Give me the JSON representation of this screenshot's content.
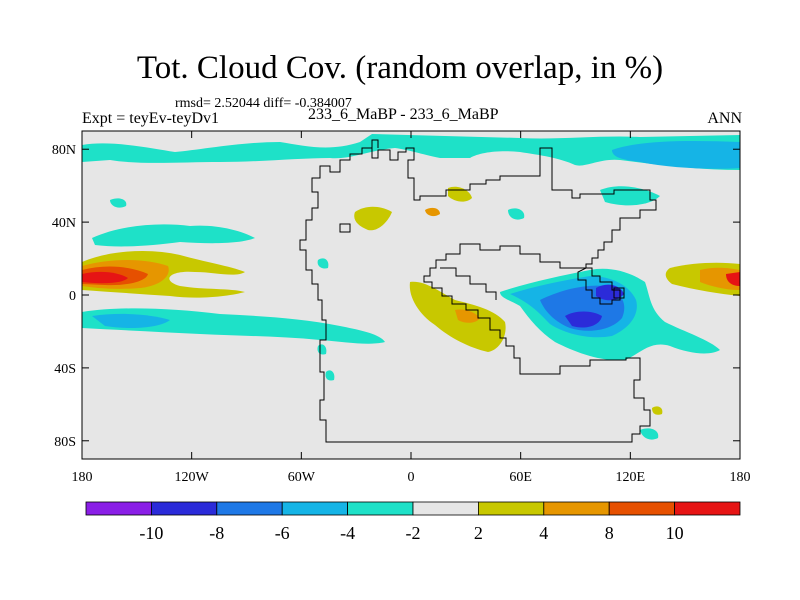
{
  "figure": {
    "title": "Tot. Cloud Cov. (random overlap, in %)",
    "stats": "rmsd= 2.52044  diff= -0.384007",
    "experiment": "Expt = teyEv-teyDv1",
    "case": "233_6_MaBP - 233_6_MaBP",
    "season": "ANN"
  },
  "axes": {
    "lat_ticks": [
      {
        "value": 80,
        "label": "80N"
      },
      {
        "value": 40,
        "label": "40N"
      },
      {
        "value": 0,
        "label": "0"
      },
      {
        "value": -40,
        "label": "40S"
      },
      {
        "value": -80,
        "label": "80S"
      }
    ],
    "lon_ticks": [
      {
        "value": -180,
        "label": "180"
      },
      {
        "value": -120,
        "label": "120W"
      },
      {
        "value": -60,
        "label": "60W"
      },
      {
        "value": 0,
        "label": "0"
      },
      {
        "value": 60,
        "label": "60E"
      },
      {
        "value": 120,
        "label": "120E"
      },
      {
        "value": 180,
        "label": "180"
      }
    ],
    "lon_range": [
      -180,
      180
    ],
    "lat_range": [
      -90,
      90
    ]
  },
  "colorbar": {
    "colors": [
      "#8a1ee6",
      "#2b2bd9",
      "#1e78e6",
      "#15b4e6",
      "#1ee1c8",
      "#e6e6e6",
      "#c8c800",
      "#e69600",
      "#e65000",
      "#e61414"
    ],
    "labels": [
      "-10",
      "-8",
      "-6",
      "-4",
      "-2",
      "2",
      "4",
      "8",
      "10"
    ]
  },
  "field_colors": {
    "background": "#e6e6e6",
    "neg2": "#1ee1c8",
    "neg4": "#15b4e6",
    "neg6": "#1e78e6",
    "neg8": "#2b2bd9",
    "pos2": "#c8c800",
    "pos4": "#e69600",
    "pos8": "#e65000",
    "pos10": "#e61414"
  }
}
